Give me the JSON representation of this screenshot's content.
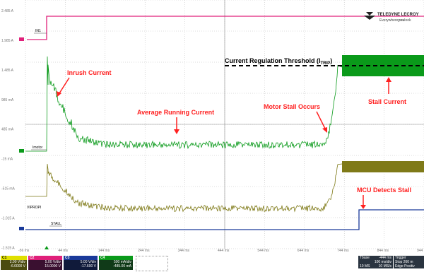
{
  "colors": {
    "background": "#ffffff",
    "grid": "#b0b0b0",
    "c1": "#e0e000",
    "c2": "#e0207a",
    "c3": "#1a3a9a",
    "c4": "#0a9a1a",
    "c1_trace": "#7f7a18",
    "annotation_red": "#ff2020"
  },
  "y_tick_labels": [
    "2.485 A",
    "1.985 A",
    "1.485 A",
    "985 mA",
    "485 mA",
    "-15 mA",
    "-515 mA",
    "-1.015 A",
    "-1.515 A"
  ],
  "x_tick_labels": [
    "-56 ms",
    "44 ms",
    "144 ms",
    "244 ms",
    "344 ms",
    "444 ms",
    "544 ms",
    "644 ms",
    "744 ms",
    "844 ms",
    "944 ms"
  ],
  "trace_labels": {
    "in1": "IN1",
    "imotor": "Imotor",
    "vipropi": "VIPROPI",
    "stall": "STALL"
  },
  "annotations": {
    "inrush": "Inrush Current",
    "average": "Average Running Current",
    "stall_occurs": "Motor Stall Occurs",
    "stall_current": "Stall Current",
    "threshold_main": "Current Regulation Threshold (I",
    "threshold_sub": "TRIP",
    "threshold_end": ")",
    "mcu": "MCU Detects Stall"
  },
  "logo": {
    "brand": "TELEDYNE LECROY",
    "tag_a": "Everywhere",
    "tag_b": "you",
    "tag_c": "look"
  },
  "channels": [
    {
      "name": "C1",
      "hdr": "",
      "scale": "2.00 V/div",
      "offset": "-6.0000 V"
    },
    {
      "name": "C2",
      "hdr": "",
      "scale": "5.00 V/div",
      "offset": "15.0000 V"
    },
    {
      "name": "C3",
      "hdr": "",
      "scale": "5.00 V/div",
      "offset": "-17.600 V"
    },
    {
      "name": "C4",
      "hdr": "",
      "scale": "500 mA/div",
      "offset": "-485.00 mA"
    }
  ],
  "timebase": {
    "label": "Tbase",
    "delay": "-444 ms",
    "div": "100 ms/div",
    "points": "10 MS",
    "rate": "10 MS/s"
  },
  "trigger": {
    "label": "Trigger",
    "mode": "Stop",
    "type": "Edge",
    "level": "260 m",
    "slope": "Positiv"
  },
  "chart_data": {
    "type": "line",
    "x_unit": "ms",
    "x_range": [
      -56,
      944
    ],
    "series": [
      {
        "channel": "C2",
        "name": "IN1",
        "description": "logic step high at ~0 ms"
      },
      {
        "channel": "C4",
        "name": "Imotor",
        "inrush_peak_A": 1.6,
        "running_A": -0.05,
        "stall_A": 1.7
      },
      {
        "channel": "C1",
        "name": "VIPROPI"
      },
      {
        "channel": "C3",
        "name": "STALL",
        "step_ms": 800
      }
    ]
  }
}
